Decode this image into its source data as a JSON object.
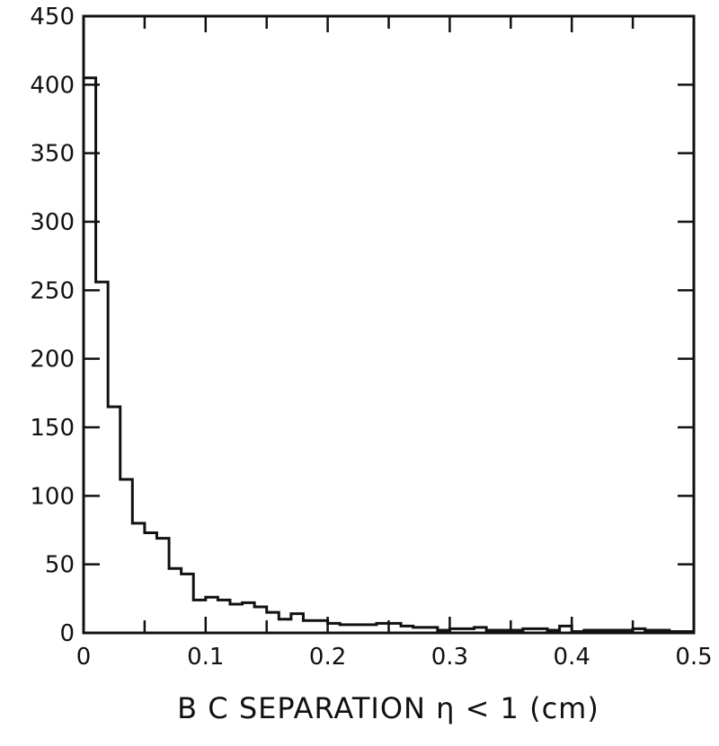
{
  "chart_data": {
    "type": "bar",
    "style": "step-histogram",
    "title": "",
    "xlabel": "B C SEPARATION η < 1 (cm)",
    "ylabel": "",
    "xlim": [
      0,
      0.5
    ],
    "ylim": [
      0,
      450
    ],
    "bin_width": 0.01,
    "bin_start": 0,
    "xticks": [
      0,
      0.1,
      0.2,
      0.3,
      0.4,
      0.5
    ],
    "xtick_labels": [
      "0",
      "0.1",
      "0.2",
      "0.3",
      "0.4",
      "0.5"
    ],
    "yticks": [
      0,
      50,
      100,
      150,
      200,
      250,
      300,
      350,
      400,
      450
    ],
    "ytick_labels": [
      "0",
      "50",
      "100",
      "150",
      "200",
      "250",
      "300",
      "350",
      "400",
      "450"
    ],
    "grid": false,
    "line_color": "#111111",
    "values": [
      405,
      256,
      165,
      112,
      80,
      73,
      69,
      47,
      43,
      24,
      26,
      24,
      21,
      22,
      19,
      15,
      10,
      14,
      9,
      9,
      7,
      6,
      6,
      6,
      7,
      7,
      5,
      4,
      4,
      2,
      3,
      3,
      4,
      2,
      2,
      2,
      3,
      3,
      2,
      5,
      1,
      2,
      2,
      2,
      2,
      3,
      2,
      2,
      1,
      1
    ]
  }
}
